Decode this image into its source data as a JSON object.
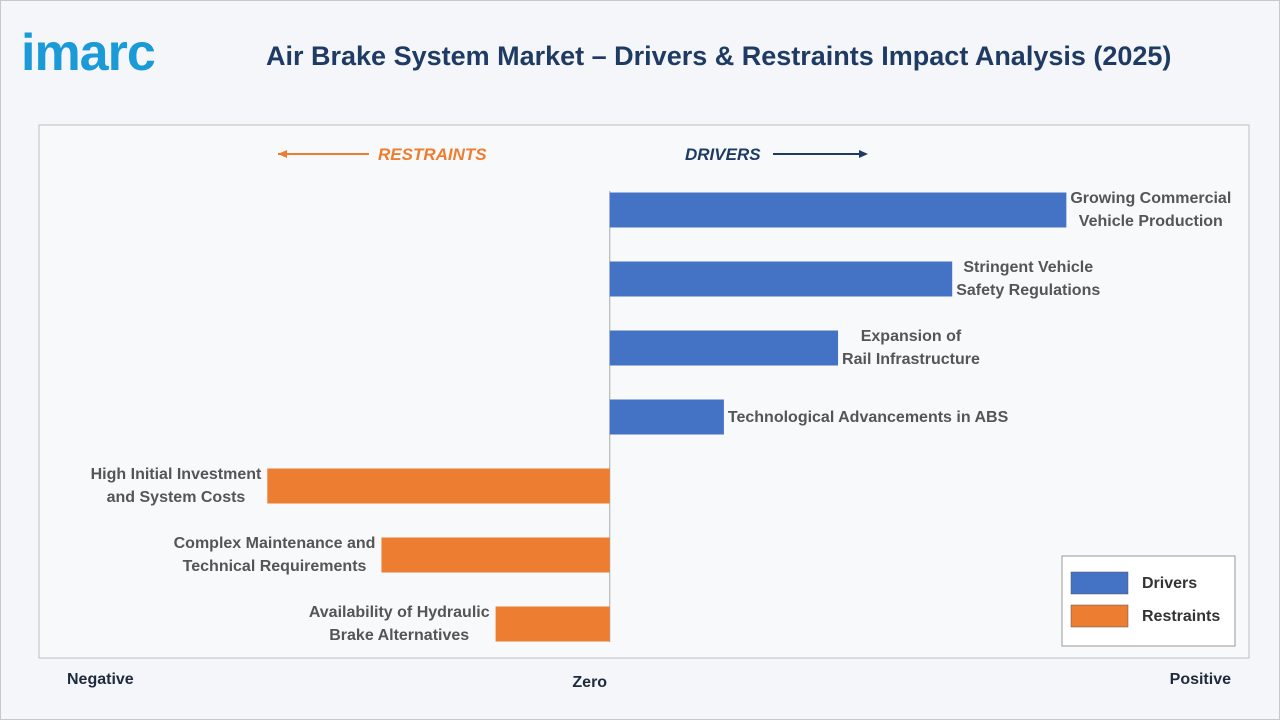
{
  "logo": "imarc",
  "chart_data": {
    "type": "diverging-bar",
    "title": "Air Brake System Market – Drivers & Restraints Impact Analysis (2025)",
    "direction_labels": {
      "left": "RESTRAINTS",
      "right": "DRIVERS"
    },
    "xlim": [
      -5,
      5.6
    ],
    "xticks": [
      {
        "value": -5,
        "label": "Negative"
      },
      {
        "value": 0,
        "label": "Zero"
      },
      {
        "value": 5.6,
        "label": "Positive"
      }
    ],
    "legend": "bottom-right",
    "series": [
      {
        "name": "Drivers",
        "color": "#4472c4",
        "categories": [
          "Growing Commercial\nVehicle Production",
          "Stringent Vehicle\nSafety Regulations",
          "Expansion of\nRail Infrastructure",
          "Technological Advancements in ABS"
        ],
        "values": [
          4,
          3,
          2,
          1
        ]
      },
      {
        "name": "Restraints",
        "color": "#ed7d31",
        "categories": [
          "High Initial Investment\nand System Costs",
          "Complex Maintenance and\nTechnical Requirements",
          "Availability of Hydraulic\nBrake Alternatives"
        ],
        "values": [
          -3,
          -2,
          -1
        ]
      }
    ]
  }
}
